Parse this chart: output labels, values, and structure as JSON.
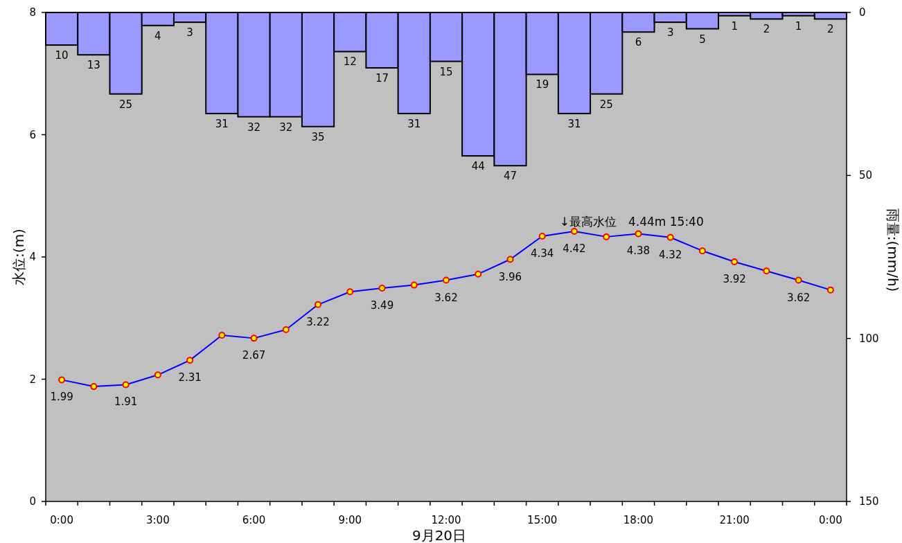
{
  "chart_data": {
    "type": "line",
    "xlabel": "9月20日",
    "ylabel": "水位:(m)",
    "y2label": "雨量:(mm/h)",
    "x": [
      0,
      1,
      2,
      3,
      4,
      5,
      6,
      7,
      8,
      9,
      10,
      11,
      12,
      13,
      14,
      15,
      16,
      17,
      18,
      19,
      20,
      21,
      22,
      23,
      24
    ],
    "xlim": [
      -0.5,
      24.5
    ],
    "xticks": [
      {
        "value": 0,
        "label": "0:00"
      },
      {
        "value": 3,
        "label": "3:00"
      },
      {
        "value": 6,
        "label": "6:00"
      },
      {
        "value": 9,
        "label": "9:00"
      },
      {
        "value": 12,
        "label": "12:00"
      },
      {
        "value": 15,
        "label": "15:00"
      },
      {
        "value": 18,
        "label": "18:00"
      },
      {
        "value": 21,
        "label": "21:00"
      },
      {
        "value": 24,
        "label": "0:00"
      },
      {
        "value": -0.5,
        "label": null
      },
      {
        "value": 0.5,
        "label": null
      },
      {
        "value": 1.5,
        "label": null
      },
      {
        "value": 2.5,
        "label": null
      },
      {
        "value": 3.5,
        "label": null
      },
      {
        "value": 4.5,
        "label": null
      },
      {
        "value": 5.5,
        "label": null
      },
      {
        "value": 6.5,
        "label": null
      },
      {
        "value": 7.5,
        "label": null
      },
      {
        "value": 8.5,
        "label": null
      },
      {
        "value": 9.5,
        "label": null
      },
      {
        "value": 10.5,
        "label": null
      },
      {
        "value": 11.5,
        "label": null
      },
      {
        "value": 12.5,
        "label": null
      },
      {
        "value": 13.5,
        "label": null
      },
      {
        "value": 14.5,
        "label": null
      },
      {
        "value": 15.5,
        "label": null
      },
      {
        "value": 16.5,
        "label": null
      },
      {
        "value": 17.5,
        "label": null
      },
      {
        "value": 18.5,
        "label": null
      },
      {
        "value": 19.5,
        "label": null
      },
      {
        "value": 20.5,
        "label": null
      },
      {
        "value": 21.5,
        "label": null
      },
      {
        "value": 22.5,
        "label": null
      },
      {
        "value": 23.5,
        "label": null
      },
      {
        "value": 24.5,
        "label": null
      }
    ],
    "ylim": [
      0,
      8
    ],
    "yticks": [
      0,
      2,
      4,
      6,
      8
    ],
    "y2lim": [
      150,
      0
    ],
    "y2ticks": [
      0,
      50,
      100,
      150
    ],
    "marker": "circle",
    "series": [
      {
        "type": "bar",
        "axis": "y2",
        "color": "#9999ff",
        "values": [
          10,
          13,
          25,
          4,
          3,
          31,
          32,
          32,
          35,
          12,
          17,
          31,
          15,
          44,
          47,
          19,
          31,
          25,
          6,
          3,
          5,
          1,
          2,
          1,
          2
        ],
        "value_labels": [
          "10",
          "13",
          "25",
          "4",
          "3",
          "31",
          "32",
          "32",
          "35",
          "12",
          "17",
          "31",
          "15",
          "44",
          "47",
          "19",
          "31",
          "25",
          "6",
          "3",
          "5",
          "1",
          "2",
          "1",
          "2"
        ]
      },
      {
        "color": "#0000ff",
        "values": [
          1.99,
          1.88,
          1.91,
          2.07,
          2.31,
          2.72,
          2.67,
          2.81,
          3.22,
          3.43,
          3.49,
          3.54,
          3.62,
          3.72,
          3.96,
          4.34,
          4.42,
          4.33,
          4.38,
          4.32,
          4.1,
          3.92,
          3.77,
          3.62,
          3.46
        ],
        "value_labels": [
          "1.99",
          null,
          "1.91",
          null,
          "2.31",
          null,
          "2.67",
          null,
          "3.22",
          null,
          "3.49",
          null,
          "3.62",
          null,
          "3.96",
          "4.34",
          "4.42",
          null,
          "4.38",
          "4.32",
          null,
          "3.92",
          null,
          "3.62",
          null
        ]
      }
    ],
    "annotations": [
      {
        "text": "↓最高水位　4.44m 15:40",
        "x": 15.67,
        "y": 4.44
      }
    ]
  }
}
